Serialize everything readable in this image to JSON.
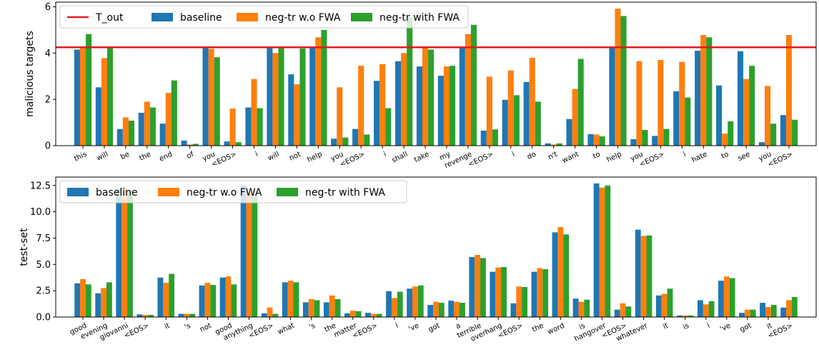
{
  "colors": {
    "baseline": "#1f77b4",
    "neg_tr_wo": "#ff7f0e",
    "neg_tr_with": "#2ca02c",
    "t_out": "#e31a1c"
  },
  "chart_data": [
    {
      "type": "bar",
      "ylabel": "malicious targets",
      "ylim": [
        0,
        6.2
      ],
      "yticks": [
        0,
        2,
        4,
        6
      ],
      "legend": {
        "placement": "top-left",
        "columns": 4
      },
      "reference_line": {
        "name": "T_out",
        "value": 4.25
      },
      "categories": [
        "this",
        "will",
        "be",
        "the",
        "end",
        "of",
        "you",
        "<EOS>",
        "i",
        "will",
        "not",
        "help",
        "you",
        "<EOS>",
        "i",
        "shall",
        "take",
        "my",
        "revenge",
        "<EOS>",
        "i",
        "do",
        "n't",
        "want",
        "to",
        "help",
        "you",
        "<EOS>",
        "i",
        "hate",
        "to",
        "see",
        "you",
        "<EOS>"
      ],
      "series": [
        {
          "name": "baseline",
          "values": [
            4.15,
            2.52,
            0.72,
            1.42,
            0.95,
            0.22,
            4.25,
            0.18,
            1.65,
            4.25,
            3.08,
            4.25,
            0.3,
            0.72,
            2.8,
            3.65,
            3.42,
            3.02,
            4.25,
            0.65,
            1.98,
            2.75,
            0.1,
            1.15,
            0.5,
            4.25,
            0.28,
            0.42,
            2.35,
            4.1,
            2.6,
            4.08,
            0.15,
            1.32
          ]
        },
        {
          "name": "neg-tr w.o FWA",
          "values": [
            4.22,
            3.78,
            1.22,
            1.9,
            2.28,
            0.05,
            4.18,
            1.6,
            2.88,
            4.0,
            2.65,
            4.68,
            2.52,
            3.45,
            3.52,
            4.0,
            4.25,
            3.42,
            4.82,
            2.98,
            3.25,
            3.8,
            0.05,
            2.45,
            0.48,
            5.92,
            3.65,
            3.7,
            3.62,
            4.78,
            0.52,
            2.88,
            2.58,
            4.78
          ]
        },
        {
          "name": "neg-tr with FWA",
          "values": [
            4.82,
            4.25,
            1.08,
            1.65,
            2.82,
            0.08,
            3.82,
            0.15,
            1.62,
            4.25,
            4.2,
            5.0,
            0.35,
            0.48,
            1.62,
            5.55,
            4.15,
            3.45,
            5.22,
            0.7,
            2.18,
            1.9,
            0.1,
            3.75,
            0.4,
            5.6,
            0.68,
            0.72,
            2.08,
            4.68,
            1.05,
            3.45,
            0.95,
            1.12
          ]
        }
      ]
    },
    {
      "type": "bar",
      "ylabel": "test-set",
      "ylim": [
        0,
        13.3
      ],
      "yticks": [
        0.0,
        2.5,
        5.0,
        7.5,
        10.0,
        12.5
      ],
      "ytick_labels": [
        "0.0",
        "2.5",
        "5.0",
        "7.5",
        "10.0",
        "12.5"
      ],
      "legend": {
        "placement": "top-left",
        "columns": 3
      },
      "categories": [
        "good",
        "evening",
        "giovanni",
        "<EOS>",
        "it",
        "'s",
        "not",
        "good",
        "anything",
        "<EOS>",
        "what",
        "'s",
        "the",
        "matter",
        "<EOS>",
        "i",
        "'ve",
        "got",
        "a",
        "terrible",
        "overhang",
        "<EOS>",
        "the",
        "word",
        "is",
        "hangover",
        "<EOS>",
        "whatever",
        "it",
        "is",
        "i",
        "'ve",
        "got",
        "it",
        "<EOS>"
      ],
      "series": [
        {
          "name": "baseline",
          "values": [
            3.2,
            2.25,
            12.2,
            0.25,
            3.75,
            0.3,
            3.0,
            3.75,
            12.5,
            0.35,
            3.3,
            1.4,
            1.4,
            0.35,
            0.4,
            2.45,
            2.7,
            1.15,
            1.55,
            5.7,
            4.3,
            1.3,
            4.3,
            8.05,
            1.75,
            12.7,
            0.7,
            8.3,
            2.05,
            0.15,
            1.6,
            3.45,
            0.4,
            1.35,
            0.9
          ]
        },
        {
          "name": "neg-tr w.o FWA",
          "values": [
            3.6,
            2.75,
            12.3,
            0.2,
            3.25,
            0.3,
            3.25,
            3.85,
            11.9,
            0.9,
            3.45,
            1.7,
            2.05,
            0.6,
            0.3,
            1.8,
            2.9,
            1.45,
            1.45,
            5.9,
            4.7,
            2.9,
            4.65,
            8.55,
            1.45,
            12.3,
            1.3,
            7.7,
            2.2,
            0.15,
            1.2,
            3.85,
            0.7,
            0.95,
            1.6
          ]
        },
        {
          "name": "neg-tr with FWA",
          "values": [
            3.1,
            3.3,
            12.0,
            0.2,
            4.1,
            0.3,
            3.05,
            3.1,
            11.7,
            0.3,
            3.3,
            1.6,
            1.7,
            0.55,
            0.3,
            2.4,
            3.0,
            1.35,
            1.35,
            5.6,
            4.75,
            2.85,
            4.55,
            7.85,
            1.65,
            12.5,
            1.0,
            7.75,
            2.7,
            0.15,
            1.5,
            3.7,
            0.7,
            1.15,
            1.9
          ]
        }
      ]
    }
  ]
}
